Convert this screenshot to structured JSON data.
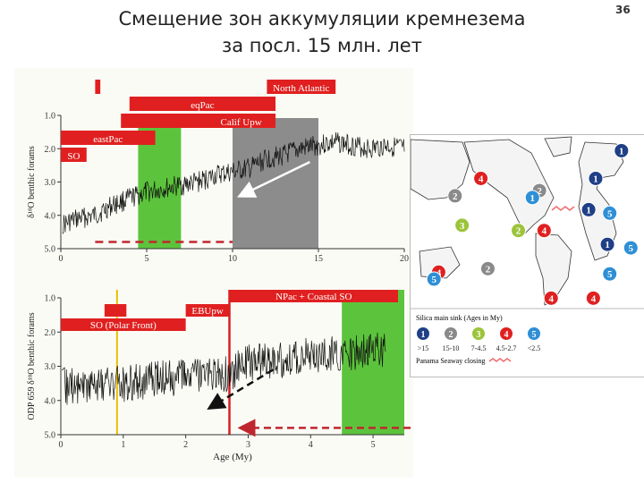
{
  "slide": {
    "title_line1": "Смещение зон аккумуляции кремнезема",
    "title_line2": "за посл. 15 млн. лет",
    "number": "36"
  },
  "colors": {
    "red": "#e02020",
    "green": "#5cc43c",
    "gray": "#8c8c8c",
    "dark_blue": "#1f3f86",
    "blue": "#2f8fd6",
    "lime": "#9cc43a",
    "slate": "#8a8a8a"
  },
  "chart_data": [
    {
      "type": "line",
      "ylabel": "δ¹⁸O benthic forams",
      "xlabel": "",
      "xlim": [
        0,
        20
      ],
      "ylim": [
        1.0,
        5.0
      ],
      "y_inverted": true,
      "xticks": [
        "0",
        "5",
        "10",
        "15",
        "20"
      ],
      "yticks": [
        "1.0",
        "2.0",
        "3.0",
        "4.0",
        "5.0"
      ],
      "series": [
        {
          "x": [
            0,
            1,
            2,
            3,
            4,
            5,
            6,
            7,
            8,
            9,
            10,
            11,
            12,
            13,
            14,
            15,
            16,
            17,
            18,
            19,
            20
          ],
          "y": [
            4.3,
            4.1,
            4.0,
            3.7,
            3.5,
            3.3,
            3.2,
            3.1,
            3.0,
            2.8,
            2.7,
            2.6,
            2.3,
            2.2,
            2.0,
            1.9,
            1.8,
            1.9,
            2.0,
            1.9,
            2.0
          ]
        }
      ],
      "bands": [
        {
          "x0": 4.5,
          "x1": 7,
          "color": "green"
        },
        {
          "x0": 10,
          "x1": 15,
          "color": "gray"
        }
      ],
      "bars": [
        {
          "label": "",
          "x0": 2.0,
          "x1": 2.3,
          "row": 0
        },
        {
          "label": "North Atlantic",
          "x0": 12.0,
          "x1": 16.0,
          "row": 0
        },
        {
          "label": "eqPac",
          "x0": 4.0,
          "x1": 12.5,
          "row": 1
        },
        {
          "label": "",
          "x0": 3.5,
          "x1": 9.0,
          "row": 2
        },
        {
          "label": "Calif Upw",
          "x0": 8.5,
          "x1": 12.5,
          "row": 2
        },
        {
          "label": "eastPac",
          "x0": 0.0,
          "x1": 5.5,
          "row": 3
        },
        {
          "label": "SO",
          "x0": 0.0,
          "x1": 1.5,
          "row": 4
        }
      ],
      "dashed_line": {
        "x0": 2.0,
        "x1": 10.0,
        "y": 4.8
      },
      "arrow": {
        "from": [
          14.5,
          2.4
        ],
        "to": [
          10.5,
          3.4
        ]
      }
    },
    {
      "type": "line",
      "ylabel": "ODP 659 δ¹⁸O benthic forams",
      "xlabel": "Age (My)",
      "xlim": [
        0,
        5.5
      ],
      "ylim": [
        1.0,
        5.0
      ],
      "y_inverted": true,
      "xticks": [
        "0",
        "1",
        "2",
        "3",
        "4",
        "5"
      ],
      "yticks": [
        "1.0",
        "2.0",
        "3.0",
        "4.0",
        "5.0"
      ],
      "series": [
        {
          "x": [
            0,
            0.5,
            1.0,
            1.5,
            2.0,
            2.5,
            2.7,
            3.0,
            3.5,
            4.0,
            4.5,
            5.0,
            5.2
          ],
          "y": [
            3.6,
            3.5,
            3.5,
            3.4,
            3.3,
            3.3,
            3.2,
            2.9,
            2.8,
            2.7,
            2.6,
            2.6,
            2.5
          ]
        }
      ],
      "bands": [
        {
          "x0": 4.5,
          "x1": 5.5,
          "color": "green"
        }
      ],
      "vlines": [
        {
          "x": 0.9,
          "color": "yellow"
        },
        {
          "x": 2.7,
          "color": "red"
        }
      ],
      "bars": [
        {
          "label": "NPac + Coastal SO",
          "x0": 2.7,
          "x1": 5.4,
          "row": 0
        },
        {
          "label": "",
          "x0": 0.7,
          "x1": 1.05,
          "row": 1
        },
        {
          "label": "EBUpw",
          "x0": 2.0,
          "x1": 2.7,
          "row": 1
        },
        {
          "label": "SO (Polar Front)",
          "x0": 0.0,
          "x1": 2.0,
          "row": 2
        }
      ],
      "arrows": [
        {
          "from": [
            3.4,
            3.1
          ],
          "to": [
            2.4,
            4.2
          ],
          "dashed": true
        },
        {
          "from": [
            5.6,
            4.8
          ],
          "to": [
            2.9,
            4.8
          ],
          "dashed": true
        }
      ]
    }
  ],
  "map": {
    "markers": [
      {
        "n": "1",
        "color": "dark_blue",
        "x": 0.9,
        "y": 0.09
      },
      {
        "n": "1",
        "color": "dark_blue",
        "x": 0.79,
        "y": 0.25
      },
      {
        "n": "1",
        "color": "dark_blue",
        "x": 0.76,
        "y": 0.43
      },
      {
        "n": "1",
        "color": "dark_blue",
        "x": 0.84,
        "y": 0.63
      },
      {
        "n": "4",
        "color": "red",
        "x": 0.3,
        "y": 0.25
      },
      {
        "n": "2",
        "color": "slate",
        "x": 0.19,
        "y": 0.35
      },
      {
        "n": "2",
        "color": "slate",
        "x": 0.55,
        "y": 0.32
      },
      {
        "n": "1",
        "color": "blue",
        "x": 0.52,
        "y": 0.36
      },
      {
        "n": "5",
        "color": "blue",
        "x": 0.85,
        "y": 0.45
      },
      {
        "n": "3",
        "color": "lime",
        "x": 0.22,
        "y": 0.52
      },
      {
        "n": "2",
        "color": "lime",
        "x": 0.46,
        "y": 0.55
      },
      {
        "n": "4",
        "color": "red",
        "x": 0.57,
        "y": 0.55
      },
      {
        "n": "5",
        "color": "blue",
        "x": 0.94,
        "y": 0.65
      },
      {
        "n": "4",
        "color": "red",
        "x": 0.12,
        "y": 0.79
      },
      {
        "n": "5",
        "color": "blue",
        "x": 0.1,
        "y": 0.83
      },
      {
        "n": "2",
        "color": "slate",
        "x": 0.33,
        "y": 0.77
      },
      {
        "n": "5",
        "color": "blue",
        "x": 0.85,
        "y": 0.8
      },
      {
        "n": "4",
        "color": "red",
        "x": 0.6,
        "y": 0.94
      },
      {
        "n": "4",
        "color": "red",
        "x": 0.78,
        "y": 0.94
      }
    ],
    "legend": {
      "title": "Silica main sink (Ages in My)",
      "items": [
        {
          "n": "1",
          "color": "dark_blue",
          "label": ">15"
        },
        {
          "n": "2",
          "color": "slate",
          "label": "15-10"
        },
        {
          "n": "3",
          "color": "lime",
          "label": "7-4.5"
        },
        {
          "n": "4",
          "color": "red",
          "label": "4.5-2.7"
        },
        {
          "n": "5",
          "color": "blue",
          "label": "<2.5"
        }
      ],
      "seaway_label": "Panama Seaway closing"
    }
  }
}
